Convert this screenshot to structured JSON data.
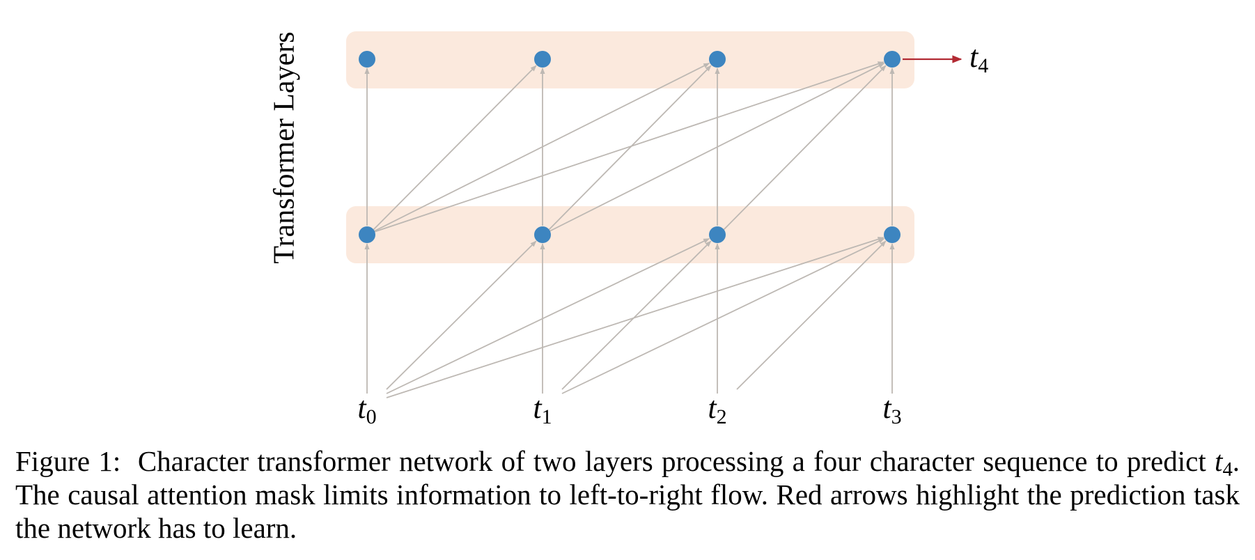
{
  "figure": {
    "axis_label": "Transformer Layers",
    "input_tokens": [
      {
        "sym": "t",
        "sub": "0"
      },
      {
        "sym": "t",
        "sub": "1"
      },
      {
        "sym": "t",
        "sub": "2"
      },
      {
        "sym": "t",
        "sub": "3"
      }
    ],
    "output_token": {
      "sym": "t",
      "sub": "4"
    },
    "layers": 2,
    "colors": {
      "node": "#3d85c0",
      "band": "#fbe9dd",
      "edge": "#bdb8b3",
      "prediction_arrow": "#b22a33"
    }
  },
  "caption": {
    "label": "Figure 1:",
    "part1": "Character transformer network of two layers processing a four character sequence to predict",
    "predict_sym": "t",
    "predict_sub": "4",
    "part2": ". The causal attention mask limits information to left-to-right flow. Red arrows highlight the prediction task the network has to learn."
  }
}
